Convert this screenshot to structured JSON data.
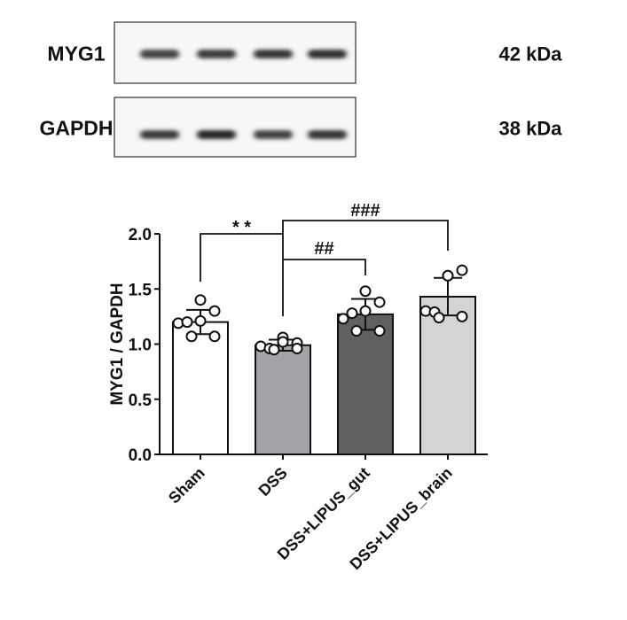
{
  "blot": {
    "rows": [
      {
        "label": "MYG1",
        "size": "42 kDa",
        "band_intensity": [
          0.75,
          0.8,
          0.85,
          0.9
        ]
      },
      {
        "label": "GAPDH",
        "size": "38 kDa",
        "band_intensity": [
          0.8,
          1.0,
          0.75,
          0.85
        ]
      }
    ]
  },
  "chart_data": {
    "type": "bar",
    "ylabel": "MYG1 / GAPDH",
    "xlabel": "",
    "ylim": [
      0,
      2.0
    ],
    "yticks": [
      "0.0",
      "0.5",
      "1.0",
      "1.5",
      "2.0"
    ],
    "grid": false,
    "categories": [
      "Sham",
      "DSS",
      "DSS+LIPUS_gut",
      "DSS+LIPUS_brain"
    ],
    "values": [
      1.2,
      0.99,
      1.27,
      1.43
    ],
    "sd": [
      0.11,
      0.05,
      0.14,
      0.17
    ],
    "bar_colors": [
      "#ffffff",
      "#a3a3a8",
      "#606060",
      "#d4d4d4"
    ],
    "points": [
      [
        1.4,
        1.3,
        1.21,
        1.19,
        1.2,
        1.07,
        1.07
      ],
      [
        1.06,
        1.01,
        1.02,
        0.98,
        0.96,
        0.95,
        0.96
      ],
      [
        1.48,
        1.38,
        1.3,
        1.23,
        1.28,
        1.12,
        1.12
      ],
      [
        1.62,
        1.67,
        1.62,
        1.3,
        1.29,
        1.24,
        1.25
      ]
    ],
    "annotations": [
      {
        "label": "**",
        "from": "Sham",
        "to": "DSS"
      },
      {
        "label": "##",
        "from": "DSS",
        "to": "DSS+LIPUS_gut"
      },
      {
        "label": "###",
        "from": "DSS",
        "to": "DSS+LIPUS_brain"
      }
    ]
  }
}
